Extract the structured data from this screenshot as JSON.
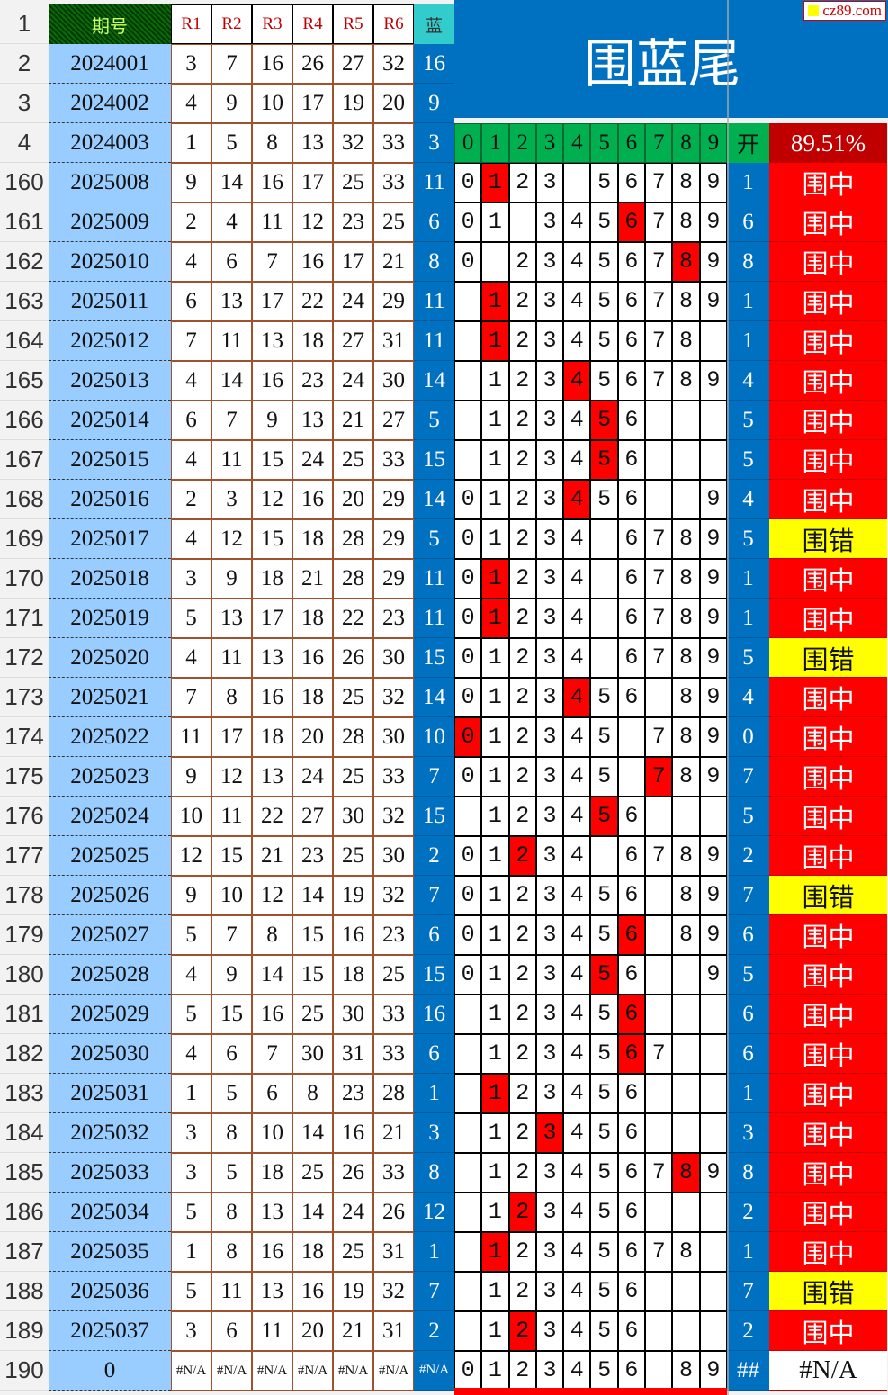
{
  "logo": "cz89.com",
  "title": "围蓝尾",
  "header": {
    "period": "期号",
    "reds": [
      "R1",
      "R2",
      "R3",
      "R4",
      "R5",
      "R6"
    ],
    "blue": "蓝",
    "digits": [
      "0",
      "1",
      "2",
      "3",
      "4",
      "5",
      "6",
      "7",
      "8",
      "9"
    ],
    "open": "开",
    "hit_rate": "89.51%"
  },
  "colors": {
    "period_bg": "#99ccff",
    "blue_bg": "#0070c0",
    "hit": "#ff0000",
    "miss": "#ffff00",
    "digit_header": "#00b050",
    "rate_bg": "#c00000"
  },
  "early_rows": [
    {
      "n": "1"
    },
    {
      "n": "2",
      "period": "2024001",
      "reds": [
        "3",
        "7",
        "16",
        "26",
        "27",
        "32"
      ],
      "blue": "16"
    },
    {
      "n": "3",
      "period": "2024002",
      "reds": [
        "4",
        "9",
        "10",
        "17",
        "19",
        "20"
      ],
      "blue": "9"
    },
    {
      "n": "4",
      "period": "2024003",
      "reds": [
        "1",
        "5",
        "8",
        "13",
        "32",
        "33"
      ],
      "blue": "3"
    }
  ],
  "rows": [
    {
      "n": "160",
      "period": "2025008",
      "reds": [
        "9",
        "14",
        "16",
        "17",
        "25",
        "33"
      ],
      "blue": "11",
      "digits": "0123 56789",
      "open": "1",
      "result": "围中"
    },
    {
      "n": "161",
      "period": "2025009",
      "reds": [
        "2",
        "4",
        "11",
        "12",
        "23",
        "25"
      ],
      "blue": "6",
      "digits": "01 3456789",
      "open": "6",
      "result": "围中"
    },
    {
      "n": "162",
      "period": "2025010",
      "reds": [
        "4",
        "6",
        "7",
        "16",
        "17",
        "21"
      ],
      "blue": "8",
      "digits": "0 23456789",
      "open": "8",
      "result": "围中"
    },
    {
      "n": "163",
      "period": "2025011",
      "reds": [
        "6",
        "13",
        "17",
        "22",
        "24",
        "29"
      ],
      "blue": "11",
      "digits": " 123456789",
      "open": "1",
      "result": "围中"
    },
    {
      "n": "164",
      "period": "2025012",
      "reds": [
        "7",
        "11",
        "13",
        "18",
        "27",
        "31"
      ],
      "blue": "11",
      "digits": " 12345678 ",
      "open": "1",
      "result": "围中"
    },
    {
      "n": "165",
      "period": "2025013",
      "reds": [
        "4",
        "14",
        "16",
        "23",
        "24",
        "30"
      ],
      "blue": "14",
      "digits": " 123456789",
      "open": "4",
      "result": "围中"
    },
    {
      "n": "166",
      "period": "2025014",
      "reds": [
        "6",
        "7",
        "9",
        "13",
        "21",
        "27"
      ],
      "blue": "5",
      "digits": " 123456   ",
      "open": "5",
      "result": "围中"
    },
    {
      "n": "167",
      "period": "2025015",
      "reds": [
        "4",
        "11",
        "15",
        "24",
        "25",
        "33"
      ],
      "blue": "15",
      "digits": " 123456   ",
      "open": "5",
      "result": "围中"
    },
    {
      "n": "168",
      "period": "2025016",
      "reds": [
        "2",
        "3",
        "12",
        "16",
        "20",
        "29"
      ],
      "blue": "14",
      "digits": "0123456  9",
      "open": "4",
      "result": "围中"
    },
    {
      "n": "169",
      "period": "2025017",
      "reds": [
        "4",
        "12",
        "15",
        "18",
        "28",
        "29"
      ],
      "blue": "5",
      "digits": "01234 6789",
      "open": "5",
      "result": "围错"
    },
    {
      "n": "170",
      "period": "2025018",
      "reds": [
        "3",
        "9",
        "18",
        "21",
        "28",
        "29"
      ],
      "blue": "11",
      "digits": "01234 6789",
      "open": "1",
      "result": "围中"
    },
    {
      "n": "171",
      "period": "2025019",
      "reds": [
        "5",
        "13",
        "17",
        "18",
        "22",
        "23"
      ],
      "blue": "11",
      "digits": "01234 6789",
      "open": "1",
      "result": "围中"
    },
    {
      "n": "172",
      "period": "2025020",
      "reds": [
        "4",
        "11",
        "13",
        "16",
        "26",
        "30"
      ],
      "blue": "15",
      "digits": "01234 6789",
      "open": "5",
      "result": "围错"
    },
    {
      "n": "173",
      "period": "2025021",
      "reds": [
        "7",
        "8",
        "16",
        "18",
        "25",
        "32"
      ],
      "blue": "14",
      "digits": "0123456 89",
      "open": "4",
      "result": "围中"
    },
    {
      "n": "174",
      "period": "2025022",
      "reds": [
        "11",
        "17",
        "18",
        "20",
        "28",
        "30"
      ],
      "blue": "10",
      "digits": "012345 789",
      "open": "0",
      "result": "围中"
    },
    {
      "n": "175",
      "period": "2025023",
      "reds": [
        "9",
        "12",
        "13",
        "24",
        "25",
        "33"
      ],
      "blue": "7",
      "digits": "012345 789",
      "open": "7",
      "result": "围中"
    },
    {
      "n": "176",
      "period": "2025024",
      "reds": [
        "10",
        "11",
        "22",
        "27",
        "30",
        "32"
      ],
      "blue": "15",
      "digits": " 123456   ",
      "open": "5",
      "result": "围中"
    },
    {
      "n": "177",
      "period": "2025025",
      "reds": [
        "12",
        "15",
        "21",
        "23",
        "25",
        "30"
      ],
      "blue": "2",
      "digits": "01234 6789",
      "open": "2",
      "result": "围中"
    },
    {
      "n": "178",
      "period": "2025026",
      "reds": [
        "9",
        "10",
        "12",
        "14",
        "19",
        "32"
      ],
      "blue": "7",
      "digits": "0123456 89",
      "open": "7",
      "result": "围错"
    },
    {
      "n": "179",
      "period": "2025027",
      "reds": [
        "5",
        "7",
        "8",
        "15",
        "16",
        "23"
      ],
      "blue": "6",
      "digits": "0123456 89",
      "open": "6",
      "result": "围中"
    },
    {
      "n": "180",
      "period": "2025028",
      "reds": [
        "4",
        "9",
        "14",
        "15",
        "18",
        "25"
      ],
      "blue": "15",
      "digits": "0123456  9",
      "open": "5",
      "result": "围中"
    },
    {
      "n": "181",
      "period": "2025029",
      "reds": [
        "5",
        "15",
        "16",
        "25",
        "30",
        "33"
      ],
      "blue": "16",
      "digits": " 123456   ",
      "open": "6",
      "result": "围中"
    },
    {
      "n": "182",
      "period": "2025030",
      "reds": [
        "4",
        "6",
        "7",
        "30",
        "31",
        "33"
      ],
      "blue": "6",
      "digits": " 1234567  ",
      "open": "6",
      "result": "围中"
    },
    {
      "n": "183",
      "period": "2025031",
      "reds": [
        "1",
        "5",
        "6",
        "8",
        "23",
        "28"
      ],
      "blue": "1",
      "digits": " 123456   ",
      "open": "1",
      "result": "围中"
    },
    {
      "n": "184",
      "period": "2025032",
      "reds": [
        "3",
        "8",
        "10",
        "14",
        "16",
        "21"
      ],
      "blue": "3",
      "digits": " 123456   ",
      "open": "3",
      "result": "围中"
    },
    {
      "n": "185",
      "period": "2025033",
      "reds": [
        "3",
        "5",
        "18",
        "25",
        "26",
        "33"
      ],
      "blue": "8",
      "digits": " 123456789",
      "open": "8",
      "result": "围中"
    },
    {
      "n": "186",
      "period": "2025034",
      "reds": [
        "5",
        "8",
        "13",
        "14",
        "24",
        "26"
      ],
      "blue": "12",
      "digits": " 123456   ",
      "open": "2",
      "result": "围中"
    },
    {
      "n": "187",
      "period": "2025035",
      "reds": [
        "1",
        "8",
        "16",
        "18",
        "25",
        "31"
      ],
      "blue": "1",
      "digits": " 12345678 ",
      "open": "1",
      "result": "围中"
    },
    {
      "n": "188",
      "period": "2025036",
      "reds": [
        "5",
        "11",
        "13",
        "16",
        "19",
        "32"
      ],
      "blue": "7",
      "digits": " 123456   ",
      "open": "7",
      "result": "围错"
    },
    {
      "n": "189",
      "period": "2025037",
      "reds": [
        "3",
        "6",
        "11",
        "20",
        "21",
        "31"
      ],
      "blue": "2",
      "digits": " 123456   ",
      "open": "2",
      "result": "围中"
    },
    {
      "n": "190",
      "period": "0",
      "reds": [
        "#N/A",
        "#N/A",
        "#N/A",
        "#N/A",
        "#N/A",
        "#N/A"
      ],
      "blue": "#N/A",
      "digits": "0123456 89",
      "open": "##",
      "result": "#N/A"
    }
  ]
}
